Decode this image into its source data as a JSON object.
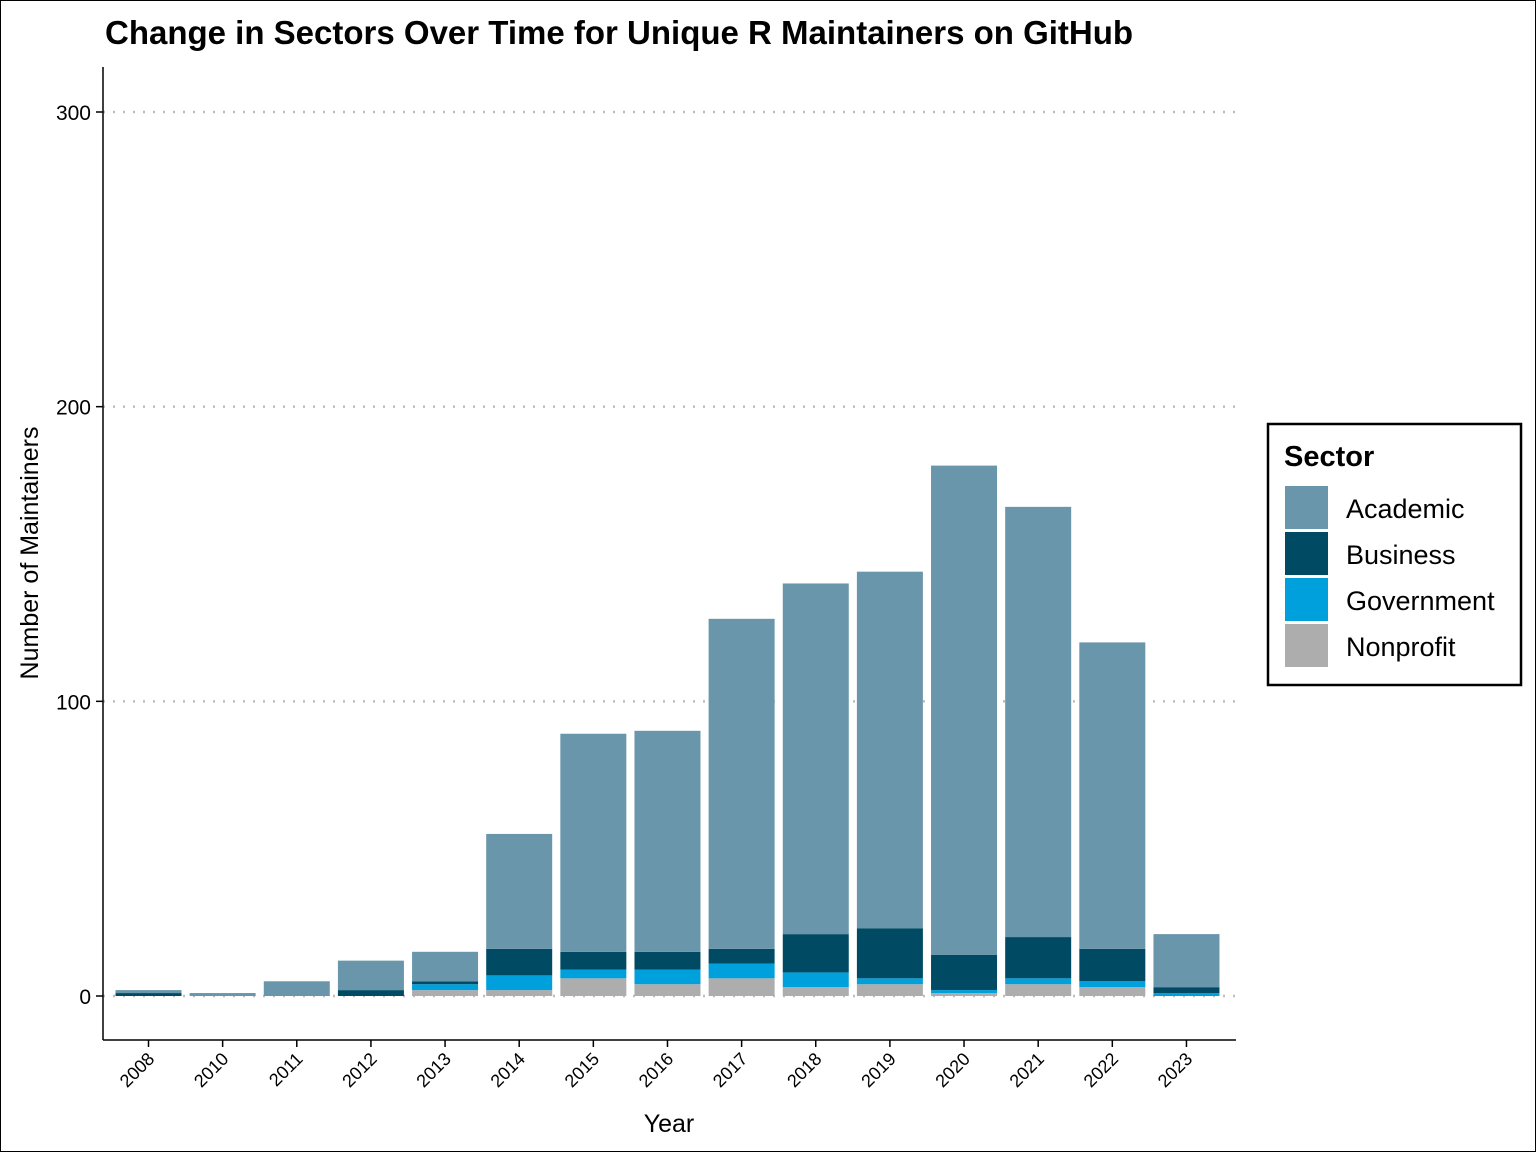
{
  "chart_data": {
    "type": "bar",
    "stacked": true,
    "title": "Change in Sectors Over Time for Unique R Maintainers on GitHub",
    "xlabel": "Year",
    "ylabel": "Number of Maintainers",
    "ylim": [
      -15,
      315
    ],
    "yticks": [
      0,
      100,
      200,
      300
    ],
    "grid": "horizontal-dotted",
    "legend": {
      "title": "Sector",
      "position": "right"
    },
    "categories": [
      "2008",
      "2010",
      "2011",
      "2012",
      "2013",
      "2014",
      "2015",
      "2016",
      "2017",
      "2018",
      "2019",
      "2020",
      "2021",
      "2022",
      "2023"
    ],
    "series": [
      {
        "name": "Nonprofit",
        "color": "#ADADAD",
        "values": [
          0,
          0,
          0,
          0,
          2,
          2,
          6,
          4,
          6,
          3,
          4,
          1,
          4,
          3,
          0
        ]
      },
      {
        "name": "Government",
        "color": "#00A0DC",
        "values": [
          0,
          0,
          0,
          0,
          2,
          5,
          3,
          5,
          5,
          5,
          2,
          1,
          2,
          2,
          1
        ]
      },
      {
        "name": "Business",
        "color": "#004B63",
        "values": [
          1,
          0,
          0,
          2,
          1,
          9,
          6,
          6,
          5,
          13,
          17,
          12,
          14,
          11,
          2
        ]
      },
      {
        "name": "Academic",
        "color": "#6996AA",
        "values": [
          1,
          1,
          5,
          10,
          10,
          39,
          74,
          75,
          112,
          119,
          121,
          166,
          146,
          104,
          18
        ]
      }
    ],
    "legend_order": [
      "Academic",
      "Business",
      "Government",
      "Nonprofit"
    ]
  }
}
